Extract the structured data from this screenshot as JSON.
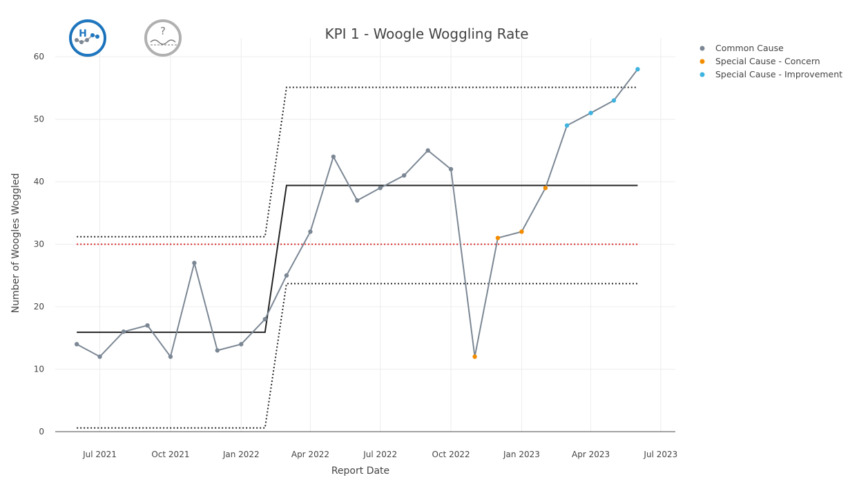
{
  "chart_data": {
    "type": "line",
    "title": "KPI 1 - Woogle Woggling Rate",
    "xlabel": "Report Date",
    "ylabel": "Number of Woogles Woggled",
    "ylim": [
      0,
      63
    ],
    "xlim": [
      "2021-05-04",
      "2023-07-20"
    ],
    "y_ticks": [
      0,
      10,
      20,
      30,
      40,
      50,
      60
    ],
    "x_ticks": [
      {
        "date": "2021-07-01",
        "label": "Jul 2021"
      },
      {
        "date": "2021-10-01",
        "label": "Oct 2021"
      },
      {
        "date": "2022-01-01",
        "label": "Jan 2022"
      },
      {
        "date": "2022-04-01",
        "label": "Apr 2022"
      },
      {
        "date": "2022-07-01",
        "label": "Jul 2022"
      },
      {
        "date": "2022-10-01",
        "label": "Oct 2022"
      },
      {
        "date": "2023-01-01",
        "label": "Jan 2023"
      },
      {
        "date": "2023-04-01",
        "label": "Apr 2023"
      },
      {
        "date": "2023-07-01",
        "label": "Jul 2023"
      }
    ],
    "grid": true,
    "legend_position": "top-right",
    "series": [
      {
        "name": "",
        "color": "#7b8794",
        "x": [
          "2021-06-01",
          "2021-07-01",
          "2021-08-01",
          "2021-09-01",
          "2021-10-01",
          "2021-11-01",
          "2021-12-01",
          "2022-01-01",
          "2022-02-01",
          "2022-03-01",
          "2022-04-01",
          "2022-05-01",
          "2022-06-01",
          "2022-07-01",
          "2022-08-01",
          "2022-09-01",
          "2022-10-01",
          "2022-11-01",
          "2022-12-01",
          "2023-01-01",
          "2023-02-01",
          "2023-03-01",
          "2023-04-01",
          "2023-05-01",
          "2023-06-01"
        ],
        "values": [
          14,
          12,
          16,
          17,
          12,
          27,
          13,
          14,
          18,
          25,
          32,
          44,
          37,
          39,
          41,
          45,
          42,
          12,
          31,
          32,
          39,
          49,
          51,
          53,
          58
        ],
        "point_class": [
          "Common Cause",
          "Common Cause",
          "Common Cause",
          "Common Cause",
          "Common Cause",
          "Common Cause",
          "Common Cause",
          "Common Cause",
          "Common Cause",
          "Common Cause",
          "Common Cause",
          "Common Cause",
          "Common Cause",
          "Common Cause",
          "Common Cause",
          "Common Cause",
          "Common Cause",
          "Special Cause - Concern",
          "Special Cause - Concern",
          "Special Cause - Concern",
          "Special Cause - Concern",
          "Special Cause - Improvement",
          "Special Cause - Improvement",
          "Special Cause - Improvement",
          "Special Cause - Improvement"
        ]
      }
    ],
    "mean_line": {
      "color": "#222222",
      "x": [
        "2021-06-01",
        "2022-02-01",
        "2022-03-01",
        "2023-06-01"
      ],
      "values": [
        15.9,
        15.9,
        39.4,
        39.4
      ]
    },
    "upper_limit": {
      "color": "#222222",
      "x": [
        "2021-06-01",
        "2022-02-01",
        "2022-03-01",
        "2023-06-01"
      ],
      "values": [
        31.2,
        31.2,
        55.1,
        55.1
      ]
    },
    "lower_limit": {
      "color": "#222222",
      "x": [
        "2021-06-01",
        "2022-02-01",
        "2022-03-01",
        "2023-06-01"
      ],
      "values": [
        0.6,
        0.6,
        23.7,
        23.7
      ]
    },
    "target_line": {
      "color": "#d62728",
      "value": 30
    },
    "legend": [
      {
        "label": "Common Cause",
        "color": "#7b8794"
      },
      {
        "label": "Special Cause - Concern",
        "color": "#f28c00"
      },
      {
        "label": "Special Cause - Improvement",
        "color": "#3fb3e0"
      }
    ],
    "icons": [
      {
        "name": "variation-high-improvement-icon",
        "letter": "H",
        "color": "#1f78c1"
      },
      {
        "name": "assurance-unknown-icon",
        "letter": "?",
        "color": "#9a9a9a"
      }
    ]
  }
}
